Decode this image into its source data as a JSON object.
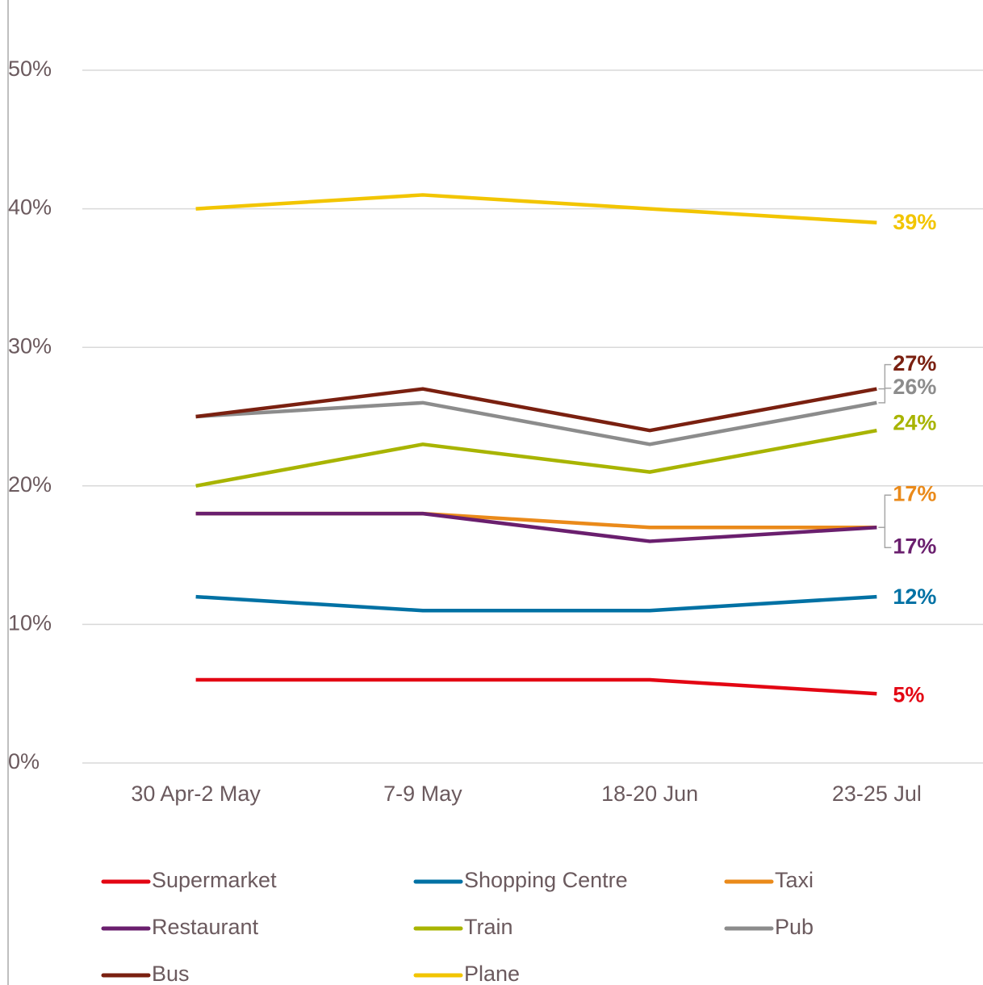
{
  "chart_data": {
    "type": "line",
    "categories": [
      "30 Apr-2 May",
      "7-9 May",
      "18-20 Jun",
      "23-25 Jul"
    ],
    "series": [
      {
        "name": "Supermarket",
        "color": "#e30613",
        "values": [
          6,
          6,
          6,
          5
        ],
        "value_labels": [
          null,
          null,
          null,
          "5%"
        ]
      },
      {
        "name": "Shopping Centre",
        "color": "#0071a4",
        "values": [
          12,
          11,
          11,
          12
        ],
        "value_labels": [
          null,
          null,
          null,
          "12%"
        ]
      },
      {
        "name": "Taxi",
        "color": "#ea8a1a",
        "values": [
          18,
          18,
          17,
          17
        ],
        "value_labels": [
          null,
          null,
          null,
          "17%"
        ]
      },
      {
        "name": "Restaurant",
        "color": "#6a1f6e",
        "values": [
          18,
          18,
          16,
          17
        ],
        "value_labels": [
          null,
          null,
          null,
          "17%"
        ]
      },
      {
        "name": "Train",
        "color": "#a8b400",
        "values": [
          20,
          23,
          21,
          24
        ],
        "value_labels": [
          null,
          null,
          null,
          "24%"
        ]
      },
      {
        "name": "Pub",
        "color": "#8c8c8c",
        "values": [
          25,
          26,
          23,
          26
        ],
        "value_labels": [
          null,
          null,
          null,
          "26%"
        ]
      },
      {
        "name": "Bus",
        "color": "#7a2010",
        "values": [
          25,
          27,
          24,
          27
        ],
        "value_labels": [
          null,
          null,
          null,
          "27%"
        ]
      },
      {
        "name": "Plane",
        "color": "#f2c500",
        "values": [
          40,
          41,
          40,
          39
        ],
        "value_labels": [
          null,
          null,
          null,
          "39%"
        ]
      }
    ],
    "ylim": [
      0,
      50
    ],
    "yticks": [
      {
        "value": 0,
        "label": "0%"
      },
      {
        "value": 10,
        "label": "10%"
      },
      {
        "value": 20,
        "label": "20%"
      },
      {
        "value": 30,
        "label": "30%"
      },
      {
        "value": 40,
        "label": "40%"
      },
      {
        "value": 50,
        "label": "50%"
      }
    ],
    "grid": true,
    "legend": "bottom"
  }
}
